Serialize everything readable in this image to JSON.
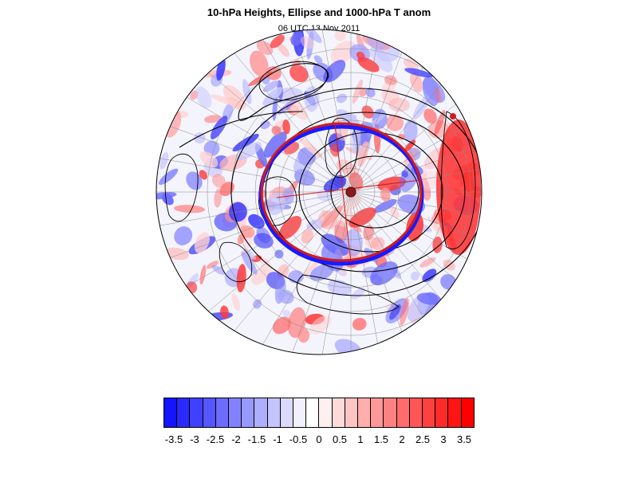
{
  "title": "10-hPa Heights, Ellipse and 1000-hPa T anom",
  "subtitle": "06 UTC 13 Nov 2011",
  "map": {
    "projection": "north polar stereographic",
    "fill_field": "1000-hPa temperature anomaly",
    "contour_field": "10-hPa geopotential height",
    "overlay": "polar vortex ellipse with major/minor axes and centroid",
    "ellipse_colors": [
      "#1a1aff",
      "#d21a1a",
      "#8b1a1a"
    ]
  },
  "colorbar": {
    "colors": [
      "#1414ff",
      "#2a2aff",
      "#4040ff",
      "#5656ff",
      "#6c6cff",
      "#8282ff",
      "#9898ff",
      "#aeaeff",
      "#c4c4ff",
      "#dadaff",
      "#f0f0ff",
      "#ffffff",
      "#fff0f0",
      "#ffdada",
      "#ffc4c4",
      "#ffaeae",
      "#ff9898",
      "#ff8282",
      "#ff6c6c",
      "#ff5656",
      "#ff4040",
      "#ff2a2a",
      "#ff1414",
      "#ff0000"
    ],
    "tick_labels": [
      "-3.5",
      "-3",
      "-2.5",
      "-2",
      "-1.5",
      "-1",
      "-0.5",
      "0",
      "0.5",
      "1",
      "1.5",
      "2",
      "2.5",
      "3",
      "3.5"
    ]
  }
}
